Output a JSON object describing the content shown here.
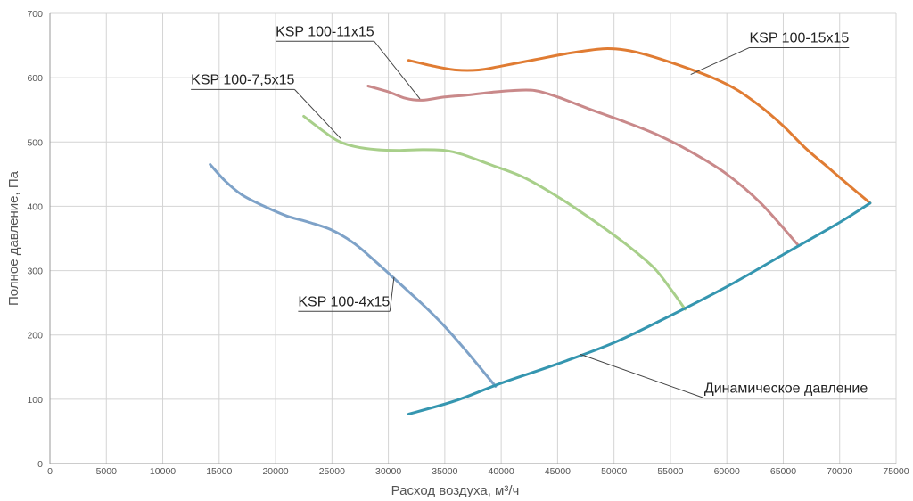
{
  "chart_data": {
    "type": "line",
    "xlabel": "Расход воздуха, м³/ч",
    "ylabel": "Полное давление, Па",
    "xlim": [
      0,
      75000
    ],
    "ylim": [
      0,
      700
    ],
    "x_ticks": [
      "0",
      "5000",
      "10000",
      "15000",
      "20000",
      "25000",
      "30000",
      "35000",
      "40000",
      "45000",
      "50000",
      "55000",
      "60000",
      "65000",
      "70000",
      "75000"
    ],
    "y_ticks": [
      "0",
      "100",
      "200",
      "300",
      "400",
      "500",
      "600",
      "700"
    ],
    "grid": true,
    "legend": "labels on curves",
    "series": [
      {
        "name": "KSP 100-4x15",
        "color": "#7ea2c8",
        "points": [
          [
            14200,
            465
          ],
          [
            15500,
            440
          ],
          [
            17000,
            418
          ],
          [
            19000,
            400
          ],
          [
            21000,
            385
          ],
          [
            23000,
            375
          ],
          [
            25000,
            363
          ],
          [
            27000,
            342
          ],
          [
            29000,
            312
          ],
          [
            31000,
            280
          ],
          [
            33000,
            248
          ],
          [
            35000,
            213
          ],
          [
            37000,
            173
          ],
          [
            39500,
            120
          ]
        ]
      },
      {
        "name": "KSP 100-7,5x15",
        "color": "#a8cf8a",
        "points": [
          [
            22500,
            540
          ],
          [
            24000,
            520
          ],
          [
            25500,
            502
          ],
          [
            27000,
            493
          ],
          [
            29000,
            488
          ],
          [
            31000,
            487
          ],
          [
            33000,
            488
          ],
          [
            35000,
            487
          ],
          [
            36500,
            481
          ],
          [
            39000,
            465
          ],
          [
            42000,
            445
          ],
          [
            45000,
            415
          ],
          [
            48000,
            380
          ],
          [
            51000,
            342
          ],
          [
            53500,
            305
          ],
          [
            55000,
            272
          ],
          [
            56300,
            240
          ]
        ]
      },
      {
        "name": "KSP 100-11x15",
        "color": "#c9898a",
        "points": [
          [
            28200,
            587
          ],
          [
            30000,
            578
          ],
          [
            31500,
            568
          ],
          [
            33000,
            565
          ],
          [
            35000,
            570
          ],
          [
            37000,
            573
          ],
          [
            39000,
            577
          ],
          [
            41000,
            580
          ],
          [
            43000,
            580
          ],
          [
            45000,
            570
          ],
          [
            48000,
            550
          ],
          [
            51000,
            531
          ],
          [
            54000,
            510
          ],
          [
            57000,
            483
          ],
          [
            60000,
            450
          ],
          [
            63000,
            405
          ],
          [
            66300,
            340
          ]
        ]
      },
      {
        "name": "KSP 100-15x15",
        "color": "#e07c33",
        "points": [
          [
            31800,
            627
          ],
          [
            34000,
            618
          ],
          [
            36000,
            612
          ],
          [
            38000,
            612
          ],
          [
            40000,
            618
          ],
          [
            43000,
            628
          ],
          [
            46000,
            638
          ],
          [
            49000,
            645
          ],
          [
            51000,
            643
          ],
          [
            53000,
            635
          ],
          [
            56000,
            618
          ],
          [
            59000,
            598
          ],
          [
            61000,
            580
          ],
          [
            63000,
            555
          ],
          [
            65000,
            525
          ],
          [
            67000,
            490
          ],
          [
            69000,
            460
          ],
          [
            71000,
            430
          ],
          [
            72700,
            405
          ]
        ]
      },
      {
        "name": "Динамическое давление",
        "color": "#3596b0",
        "points": [
          [
            31800,
            77
          ],
          [
            36000,
            98
          ],
          [
            40000,
            125
          ],
          [
            45000,
            155
          ],
          [
            50000,
            188
          ],
          [
            55000,
            230
          ],
          [
            60000,
            275
          ],
          [
            65000,
            325
          ],
          [
            70000,
            375
          ],
          [
            72700,
            405
          ]
        ]
      }
    ],
    "annotations": [
      {
        "text": "KSP 100-4x15",
        "series": 0,
        "anchor": [
          30500,
          290
        ],
        "label_at": [
          22000,
          245
        ],
        "line_end": [
          24000,
          212
        ]
      },
      {
        "text": "KSP 100-7,5x15",
        "series": 1,
        "anchor": [
          25800,
          505
        ],
        "label_at": [
          12500,
          590
        ],
        "line_end": [
          12800,
          577
        ]
      },
      {
        "text": "KSP 100-11x15",
        "series": 2,
        "anchor": [
          32800,
          567
        ],
        "label_at": [
          20000,
          665
        ],
        "line_end": [
          20000,
          652
        ]
      },
      {
        "text": "KSP 100-15x15",
        "series": 3,
        "anchor": [
          56800,
          605
        ],
        "label_at": [
          62000,
          655
        ],
        "line_end": [
          69500,
          625
        ]
      },
      {
        "text": "Динамическое давление",
        "series": 4,
        "anchor": [
          47000,
          170
        ],
        "label_at": [
          58000,
          110
        ],
        "line_end": [
          69000,
          100
        ]
      }
    ]
  }
}
